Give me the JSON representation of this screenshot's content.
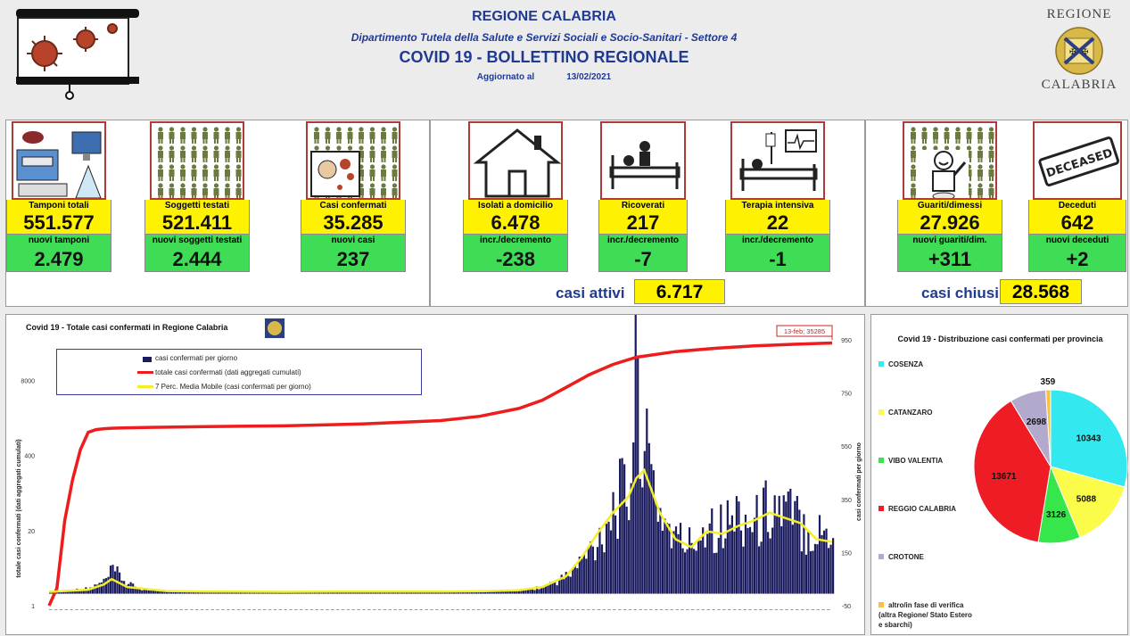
{
  "header": {
    "region": "REGIONE CALABRIA",
    "department": "Dipartimento Tutela della Salute e Servizi Sociali e Socio-Sanitari - Settore 4",
    "bulletin": "COVID 19 - BOLLETTINO REGIONALE",
    "updated_label": "Aggiornato al",
    "updated_date": "13/02/2021",
    "logo_top": "REGIONE",
    "logo_bottom": "CALABRIA"
  },
  "tiles": {
    "tamponi": {
      "label": "Tamponi totali",
      "value": "551.577",
      "sub_label": "nuovi tamponi",
      "sub_value": "2.479"
    },
    "soggetti": {
      "label": "Soggetti testati",
      "value": "521.411",
      "sub_label": "nuovi soggetti testati",
      "sub_value": "2.444"
    },
    "confermati": {
      "label": "Casi confermati",
      "value": "35.285",
      "sub_label": "nuovi casi",
      "sub_value": "237"
    },
    "isolati": {
      "label": "Isolati a domicilio",
      "value": "6.478",
      "sub_label": "incr./decremento",
      "sub_value": "-238"
    },
    "ricoverati": {
      "label": "Ricoverati",
      "value": "217",
      "sub_label": "incr./decremento",
      "sub_value": "-7"
    },
    "terapia": {
      "label": "Terapia intensiva",
      "value": "22",
      "sub_label": "incr./decremento",
      "sub_value": "-1"
    },
    "guariti": {
      "label": "Guariti/dimessi",
      "value": "27.926",
      "sub_label": "nuovi guariti/dim.",
      "sub_value": "+311"
    },
    "deceduti": {
      "label": "Deceduti",
      "value": "642",
      "sub_label": "nuovi deceduti",
      "sub_value": "+2"
    }
  },
  "summary": {
    "attivi_label": "casi attivi",
    "attivi_value": "6.717",
    "chiusi_label": "casi chiusi",
    "chiusi_value": "28.568"
  },
  "icons": {
    "deceased_stamp": "DECEASED"
  },
  "colors": {
    "yellow": "#fff200",
    "green": "#3fdc55",
    "navy": "#1f3a93",
    "bar": "#1a1a5e",
    "cumulative": "#ee1c1c",
    "moving_avg": "#f2ef2a"
  },
  "chart_data": [
    {
      "type": "bar",
      "title": "Covid 19 - Totale casi confermati in Regione Calabria",
      "ylabel": "totale casi confermati (dati aggregati cumulati)",
      "y2label": "casi confermati per giorno",
      "y_left_ticks": [
        "1",
        "20",
        "400",
        "8000"
      ],
      "y_right_ticks": [
        "-50",
        "150",
        "350",
        "550",
        "750",
        "950"
      ],
      "y_right_range": [
        -50,
        950
      ],
      "y_left_scale": "log",
      "callout": "13-feb; 35285",
      "legend": [
        "casi confermati per giorno",
        "totale casi confermati (dati aggregati cumulati)",
        "7 Perc. Media Mobile (casi confermati per giorno)"
      ],
      "series": [
        {
          "name": "casi confermati per giorno",
          "kind": "bar",
          "x_fraction": [
            0,
            0.05,
            0.07,
            0.08,
            0.09,
            0.1,
            0.12,
            0.15,
            0.2,
            0.3,
            0.4,
            0.47,
            0.5,
            0.55,
            0.6,
            0.63,
            0.66,
            0.68,
            0.7,
            0.72,
            0.74,
            0.75,
            0.76,
            0.77,
            0.78,
            0.8,
            0.82,
            0.84,
            0.86,
            0.88,
            0.9,
            0.92,
            0.94,
            0.96,
            0.98,
            1.0
          ],
          "values": [
            2,
            15,
            40,
            80,
            60,
            30,
            10,
            5,
            3,
            2,
            5,
            3,
            2,
            4,
            8,
            20,
            60,
            120,
            200,
            330,
            380,
            880,
            500,
            420,
            300,
            200,
            180,
            280,
            240,
            300,
            250,
            330,
            300,
            260,
            220,
            237
          ]
        },
        {
          "name": "totale casi confermati (dati aggregati cumulati)",
          "kind": "line",
          "x_fraction": [
            0,
            0.01,
            0.02,
            0.03,
            0.04,
            0.05,
            0.06,
            0.07,
            0.08,
            0.1,
            0.13,
            0.16,
            0.2,
            0.3,
            0.4,
            0.5,
            0.55,
            0.6,
            0.63,
            0.66,
            0.69,
            0.72,
            0.75,
            0.8,
            0.85,
            0.9,
            0.95,
            1.0
          ],
          "values": [
            1,
            2,
            30,
            150,
            500,
            1000,
            1120,
            1160,
            1180,
            1200,
            1220,
            1240,
            1260,
            1300,
            1400,
            1600,
            1900,
            2600,
            3600,
            6000,
            10000,
            15000,
            20000,
            25000,
            28500,
            31500,
            33500,
            35285
          ]
        },
        {
          "name": "7 Perc. Media Mobile (casi confermati per giorno)",
          "kind": "line",
          "x_fraction": [
            0,
            0.05,
            0.07,
            0.08,
            0.1,
            0.15,
            0.2,
            0.3,
            0.4,
            0.5,
            0.55,
            0.6,
            0.63,
            0.66,
            0.68,
            0.7,
            0.72,
            0.74,
            0.75,
            0.76,
            0.77,
            0.78,
            0.8,
            0.82,
            0.84,
            0.86,
            0.88,
            0.9,
            0.92,
            0.94,
            0.96,
            0.98,
            1.0
          ],
          "values": [
            2,
            10,
            30,
            50,
            20,
            5,
            3,
            2,
            3,
            3,
            4,
            8,
            20,
            60,
            130,
            220,
            300,
            360,
            430,
            460,
            380,
            300,
            200,
            170,
            230,
            220,
            250,
            270,
            300,
            280,
            260,
            200,
            190
          ]
        }
      ]
    },
    {
      "type": "pie",
      "title": "Covid 19 - Distribuzione casi confermati per provincia",
      "legend": [
        "COSENZA",
        "CATANZARO",
        "VIBO VALENTIA",
        "REGGIO CALABRIA",
        "CROTONE",
        "altro/in fase di verifica (altra Regione/ Stato Estero e sbarchi)"
      ],
      "labels": [
        "COSENZA",
        "CATANZARO",
        "VIBO VALENTIA",
        "REGGIO CALABRIA",
        "CROTONE",
        "altro/in fase di verifica"
      ],
      "values": [
        10343,
        5088,
        3126,
        13671,
        2698,
        359
      ],
      "colors": [
        "#33e8ee",
        "#fbfb4a",
        "#37e64a",
        "#ee1c24",
        "#b3a9cc",
        "#f6c244"
      ]
    }
  ]
}
